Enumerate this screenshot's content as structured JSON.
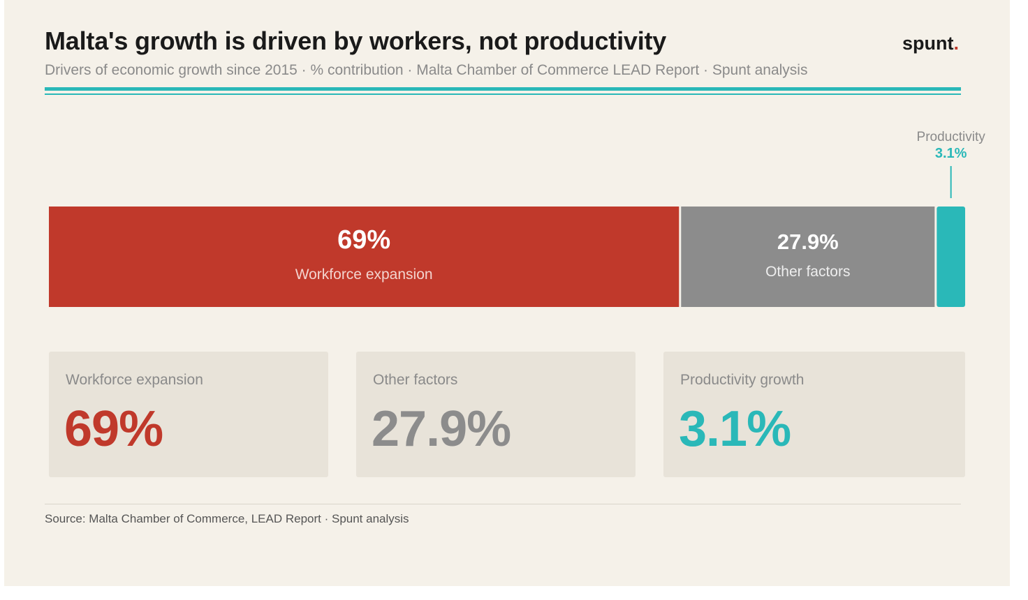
{
  "header": {
    "title": "Malta's growth is driven by workers, not productivity",
    "subtitle": "Drivers of economic growth since 2015 · % contribution · Malta Chamber of Commerce LEAD Report · Spunt analysis",
    "logo_text": "spunt",
    "logo_dot": "."
  },
  "chart_data": {
    "type": "bar",
    "stacked": true,
    "orientation": "horizontal",
    "unit": "%",
    "segments": [
      {
        "label": "Workforce expansion",
        "value": 69,
        "value_label": "69%",
        "color": "#c0392b"
      },
      {
        "label": "Other factors",
        "value": 27.9,
        "value_label": "27.9%",
        "color": "#8c8c8c"
      },
      {
        "label": "Productivity",
        "value": 3.1,
        "value_label": "3.1%",
        "color": "#2ab8b8"
      }
    ]
  },
  "stats": [
    {
      "label": "Workforce expansion",
      "value": "69%",
      "color": "#c0392b"
    },
    {
      "label": "Other factors",
      "value": "27.9%",
      "color": "#8c8c8c"
    },
    {
      "label": "Productivity growth",
      "value": "3.1%",
      "color": "#2ab8b8"
    }
  ],
  "footer": {
    "source": "Source: Malta Chamber of Commerce, LEAD Report · Spunt analysis"
  }
}
